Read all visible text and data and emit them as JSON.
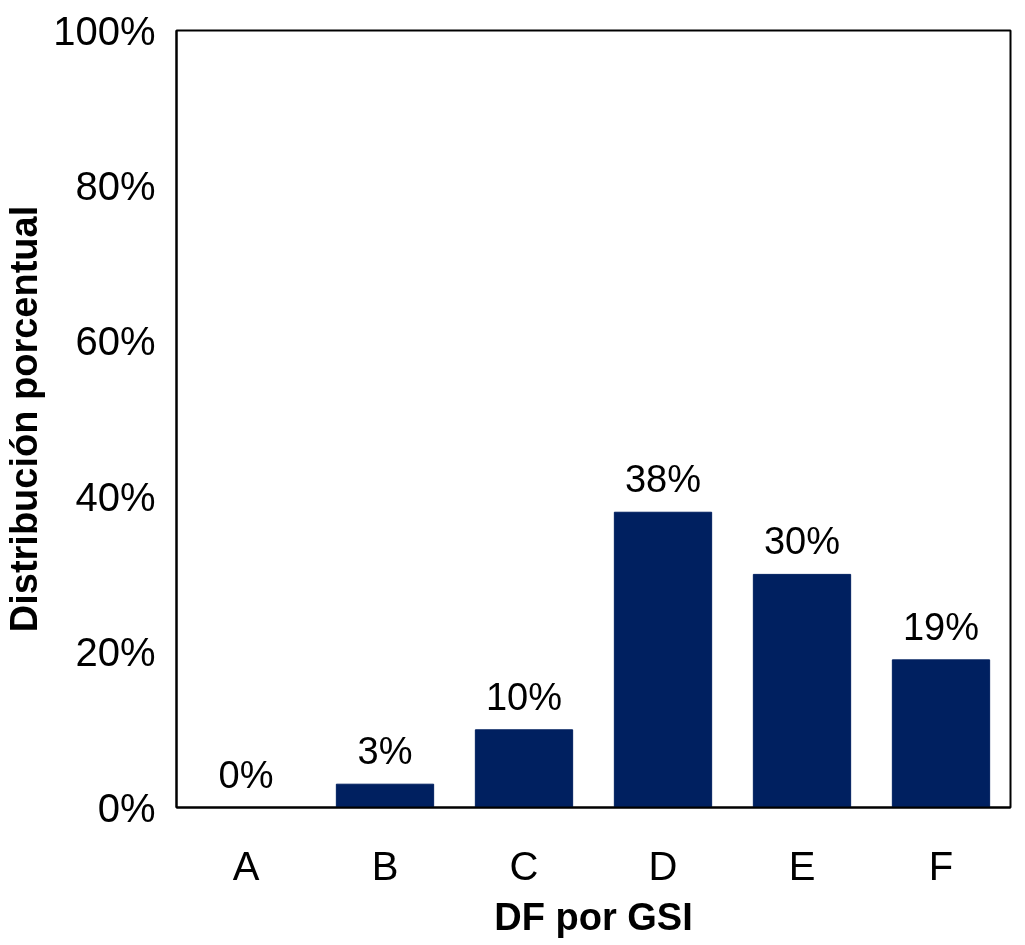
{
  "chart_data": {
    "type": "bar",
    "xlabel": "DF por GSI",
    "ylabel": "Distribución porcentual",
    "categories": [
      "A",
      "B",
      "C",
      "D",
      "E",
      "F"
    ],
    "values": [
      0,
      3,
      10,
      38,
      30,
      19
    ],
    "value_labels": [
      "0%",
      "3%",
      "10%",
      "38%",
      "30%",
      "19%"
    ],
    "color": "#002060",
    "ylim": [
      0,
      100
    ],
    "yticks": [
      {
        "value": 0,
        "label": "0%"
      },
      {
        "value": 20,
        "label": "20%"
      },
      {
        "value": 40,
        "label": "40%"
      },
      {
        "value": 60,
        "label": "60%"
      },
      {
        "value": 80,
        "label": "80%"
      },
      {
        "value": 100,
        "label": "100%"
      }
    ],
    "grid": false
  }
}
